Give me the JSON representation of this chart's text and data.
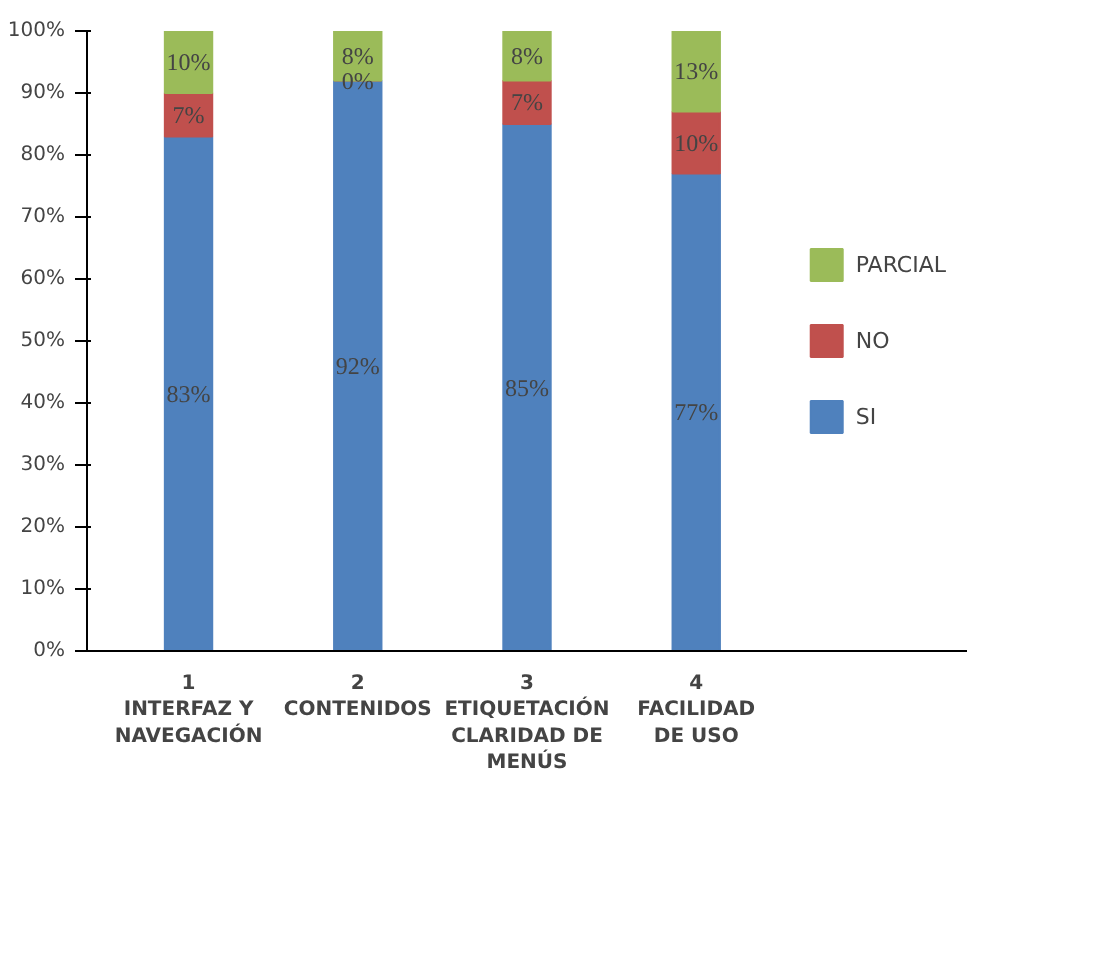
{
  "chart_data": {
    "type": "bar",
    "stacked": true,
    "categories": [
      "1\nINTERFAZ Y\nNAVEGACIÓN",
      "2\nCONTENIDOS",
      "3\nETIQUETACIÓN\nCLARIDAD DE\nMENÚS",
      "4\nFACILIDAD\nDE USO"
    ],
    "series": [
      {
        "name": "SI",
        "color": "#4f81bd",
        "values": [
          83,
          92,
          85,
          77
        ],
        "value_labels": [
          "83%",
          "92%",
          "85%",
          "77%"
        ]
      },
      {
        "name": "NO",
        "color": "#c0504d",
        "values": [
          7,
          0,
          7,
          10
        ],
        "value_labels": [
          "7%",
          "0%",
          "7%",
          "10%"
        ]
      },
      {
        "name": "PARCIAL",
        "color": "#9bbb59",
        "values": [
          10,
          8,
          8,
          13
        ],
        "value_labels": [
          "10%",
          "8%",
          "8%",
          "13%"
        ]
      }
    ],
    "ylim": [
      0,
      100
    ],
    "yticks": [
      {
        "value": 0,
        "label": "0%"
      },
      {
        "value": 10,
        "label": "10%"
      },
      {
        "value": 20,
        "label": "20%"
      },
      {
        "value": 30,
        "label": "30%"
      },
      {
        "value": 40,
        "label": "40%"
      },
      {
        "value": 50,
        "label": "50%"
      },
      {
        "value": 60,
        "label": "60%"
      },
      {
        "value": 70,
        "label": "70%"
      },
      {
        "value": 80,
        "label": "80%"
      },
      {
        "value": 90,
        "label": "90%"
      },
      {
        "value": 100,
        "label": "100%"
      }
    ],
    "legend": "right",
    "grid": false
  }
}
